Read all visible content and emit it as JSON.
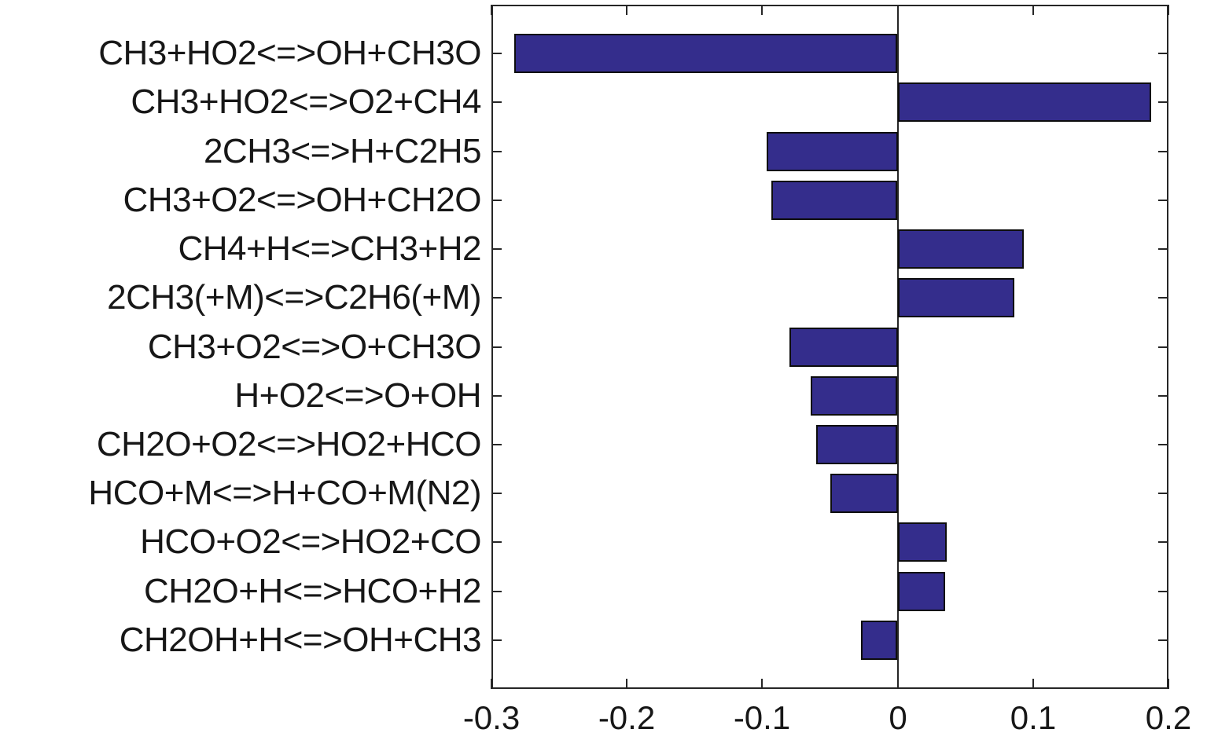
{
  "chart_data": {
    "type": "bar",
    "orientation": "horizontal",
    "title": "",
    "xlabel": "",
    "ylabel": "",
    "grid": false,
    "legend": null,
    "background_color": "#ffffff",
    "bar_color": "#342d8c",
    "bar_edge_color": "#0d0d0d",
    "axis_color": "#262626",
    "text_color": "#171717",
    "xlim": [
      -0.3,
      0.2
    ],
    "x_ticks": [
      -0.3,
      -0.2,
      -0.1,
      0,
      0.1,
      0.2
    ],
    "x_tick_labels": [
      "-0.3",
      "-0.2",
      "-0.1",
      "0",
      "0.1",
      "0.2"
    ],
    "zero_line": true,
    "bar_relative_width": 0.8,
    "y_slots": 14,
    "categories": [
      "CH3+HO2<=>OH+CH3O",
      "CH3+HO2<=>O2+CH4",
      "2CH3<=>H+C2H5",
      "CH3+O2<=>OH+CH2O",
      "CH4+H<=>CH3+H2",
      "2CH3(+M)<=>C2H6(+M)",
      "CH3+O2<=>O+CH3O",
      "H+O2<=>O+OH",
      "CH2O+O2<=>HO2+HCO",
      "HCO+M<=>H+CO+M(N2)",
      "HCO+O2<=>HO2+CO",
      "CH2O+H<=>HCO+H2",
      "CH2OH+H<=>OH+CH3"
    ],
    "values": [
      -0.283,
      0.187,
      -0.097,
      -0.093,
      0.093,
      0.086,
      -0.08,
      -0.064,
      -0.06,
      -0.05,
      0.036,
      0.035,
      -0.027
    ]
  }
}
